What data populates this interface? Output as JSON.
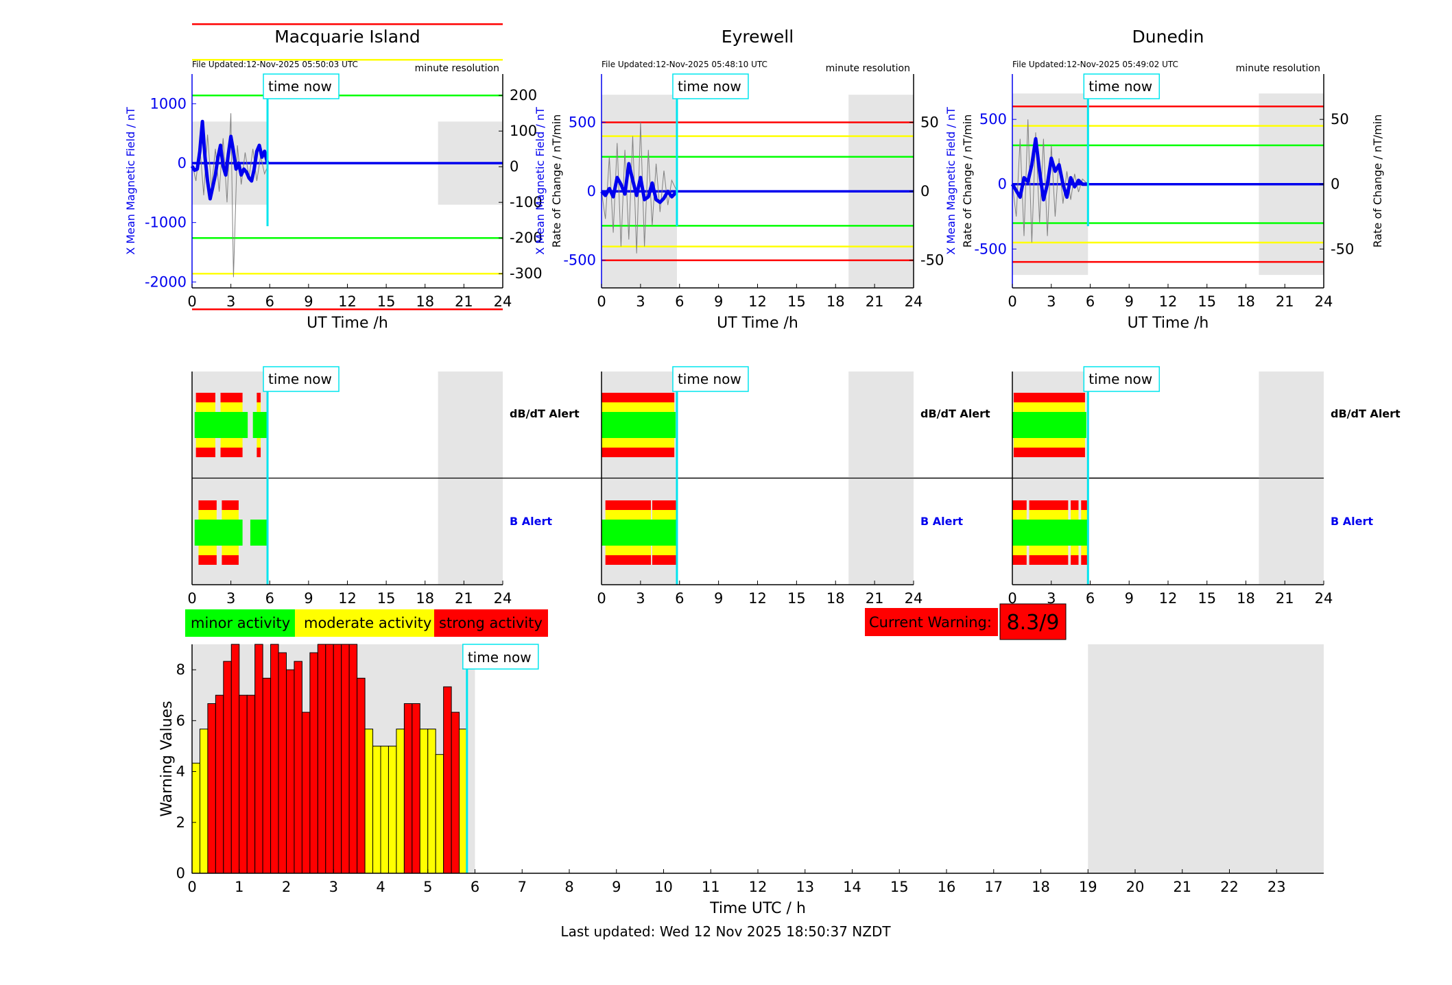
{
  "chart_data": [
    {
      "type": "line",
      "panel": "station",
      "title": "Macquarie Island",
      "file_updated": "File Updated:12-Nov-2025 05:50:03 UTC",
      "resolution_label": "minute resolution",
      "time_now_label": "time now",
      "time_now": 5.83,
      "xlabel": "UT Time /h",
      "ylabel_left": "X Mean Magnetic Field / nT",
      "ylabel_right": "Rate of Change / nT/min",
      "xlim": [
        0,
        24
      ],
      "ylim_left": [
        -2100,
        1500
      ],
      "ylim_right": [
        -340,
        260
      ],
      "x_ticks": [
        0,
        3,
        6,
        9,
        12,
        15,
        18,
        21,
        24
      ],
      "y_ticks_left": [
        1000,
        0,
        -1000,
        -2000
      ],
      "y_ticks_right": [
        200,
        100,
        0,
        -100,
        -200,
        -300
      ],
      "night_shading": [
        [
          0,
          5.83,
          -700,
          700
        ],
        [
          19,
          24,
          -700,
          700
        ]
      ],
      "threshold_lines": {
        "red": [
          400,
          -400
        ],
        "yellow": [
          300,
          -300
        ],
        "green": [
          200,
          -200
        ]
      },
      "series": [
        {
          "name": "",
          "color": "#0000ee",
          "x": [
            0.0,
            0.2,
            0.4,
            0.6,
            0.8,
            1.0,
            1.2,
            1.4,
            1.6,
            1.8,
            2.0,
            2.2,
            2.4,
            2.6,
            2.8,
            3.0,
            3.2,
            3.4,
            3.6,
            3.8,
            4.0,
            4.2,
            4.4,
            4.6,
            4.8,
            5.0,
            5.2,
            5.4,
            5.6,
            5.83
          ],
          "y": [
            -50,
            -120,
            -100,
            200,
            700,
            100,
            -300,
            -600,
            -400,
            -200,
            100,
            300,
            -50,
            -200,
            150,
            450,
            200,
            -100,
            0,
            -200,
            -100,
            -150,
            -250,
            -300,
            -100,
            200,
            300,
            100,
            200,
            0
          ]
        },
        {
          "name": "",
          "color": "#808080",
          "x": [
            0.0,
            0.3,
            0.6,
            0.9,
            1.2,
            1.5,
            1.8,
            2.1,
            2.4,
            2.7,
            3.0,
            3.2,
            3.5,
            3.8,
            4.1,
            4.4,
            4.7,
            5.0,
            5.3,
            5.6,
            5.83
          ],
          "y": [
            10,
            -40,
            60,
            -80,
            90,
            -60,
            50,
            -70,
            80,
            -100,
            150,
            -310,
            60,
            -50,
            40,
            -30,
            50,
            -40,
            30,
            -20,
            0
          ]
        }
      ]
    },
    {
      "type": "line",
      "panel": "station",
      "title": "Eyrewell",
      "file_updated": "File Updated:12-Nov-2025 05:48:10 UTC",
      "resolution_label": "minute resolution",
      "time_now_label": "time now",
      "time_now": 5.8,
      "xlabel": "UT Time /h",
      "ylabel_left": "X Mean Magnetic Field / nT",
      "ylabel_right": "Rate of Change / nT/min",
      "xlim": [
        0,
        24
      ],
      "ylim_left": [
        -700,
        850
      ],
      "ylim_right": [
        -70,
        85
      ],
      "x_ticks": [
        0,
        3,
        6,
        9,
        12,
        15,
        18,
        21,
        24
      ],
      "y_ticks_left": [
        500,
        0,
        -500
      ],
      "y_ticks_right": [
        50,
        0,
        -50
      ],
      "night_shading": [
        [
          0,
          5.8,
          -700,
          700
        ],
        [
          19,
          24,
          -700,
          700
        ]
      ],
      "threshold_lines": {
        "red": [
          50,
          -50
        ],
        "yellow": [
          40,
          -40
        ],
        "green": [
          25,
          -25
        ]
      },
      "series": [
        {
          "name": "",
          "color": "#0000ee",
          "x": [
            0.0,
            0.3,
            0.6,
            0.9,
            1.2,
            1.5,
            1.8,
            2.1,
            2.4,
            2.7,
            3.0,
            3.3,
            3.6,
            3.9,
            4.2,
            4.5,
            4.8,
            5.1,
            5.4,
            5.8
          ],
          "y": [
            0,
            -30,
            20,
            -40,
            100,
            50,
            -20,
            200,
            80,
            -30,
            100,
            -60,
            -40,
            60,
            -60,
            -80,
            -50,
            0,
            -40,
            0
          ]
        },
        {
          "name": "",
          "color": "#808080",
          "x": [
            0.0,
            0.3,
            0.6,
            0.9,
            1.2,
            1.5,
            1.8,
            2.1,
            2.4,
            2.7,
            3.0,
            3.3,
            3.6,
            3.9,
            4.2,
            4.5,
            4.8,
            5.1,
            5.4,
            5.8
          ],
          "y": [
            0,
            -20,
            25,
            -30,
            35,
            -40,
            30,
            -35,
            40,
            -45,
            50,
            -40,
            30,
            -25,
            20,
            -15,
            15,
            -10,
            8,
            0
          ]
        }
      ]
    },
    {
      "type": "line",
      "panel": "station",
      "title": "Dunedin",
      "file_updated": "File Updated:12-Nov-2025 05:49:02 UTC",
      "resolution_label": "minute resolution",
      "time_now_label": "time now",
      "time_now": 5.83,
      "xlabel": "UT Time /h",
      "ylabel_left": "X Mean Magnetic Field / nT",
      "ylabel_right": "Rate of Change / nT/min",
      "xlim": [
        0,
        24
      ],
      "ylim_left": [
        -800,
        850
      ],
      "ylim_right": [
        -80,
        85
      ],
      "x_ticks": [
        0,
        3,
        6,
        9,
        12,
        15,
        18,
        21,
        24
      ],
      "y_ticks_left": [
        500,
        0,
        -500
      ],
      "y_ticks_right": [
        50,
        0,
        -50
      ],
      "night_shading": [
        [
          0,
          5.83,
          -700,
          700
        ],
        [
          19,
          24,
          -700,
          700
        ]
      ],
      "threshold_lines": {
        "red": [
          60,
          -60
        ],
        "yellow": [
          45,
          -45
        ],
        "green": [
          30,
          -30
        ]
      },
      "series": [
        {
          "name": "",
          "color": "#0000ee",
          "x": [
            0.0,
            0.3,
            0.6,
            0.9,
            1.2,
            1.5,
            1.8,
            2.1,
            2.4,
            2.7,
            3.0,
            3.3,
            3.6,
            3.9,
            4.2,
            4.5,
            4.8,
            5.1,
            5.4,
            5.83
          ],
          "y": [
            0,
            -50,
            -100,
            50,
            20,
            150,
            350,
            100,
            -120,
            0,
            200,
            100,
            150,
            0,
            -100,
            50,
            -20,
            30,
            0,
            0
          ]
        },
        {
          "name": "",
          "color": "#808080",
          "x": [
            0.0,
            0.3,
            0.6,
            0.9,
            1.2,
            1.5,
            1.8,
            2.1,
            2.4,
            2.7,
            3.0,
            3.3,
            3.6,
            3.9,
            4.2,
            4.5,
            4.8,
            5.1,
            5.4,
            5.83
          ],
          "y": [
            0,
            -25,
            35,
            -40,
            50,
            -45,
            40,
            -30,
            35,
            -40,
            30,
            -25,
            20,
            -15,
            10,
            -12,
            8,
            -6,
            4,
            0
          ]
        }
      ]
    },
    {
      "type": "bar",
      "panel": "alerts",
      "title": "",
      "time_now_label": "time now",
      "time_now": 5.83,
      "row_labels": [
        "dB/dT Alert",
        "B Alert"
      ],
      "row_label_colors": [
        "#000000",
        "#0000ee"
      ],
      "xlim": [
        0,
        24
      ],
      "x_ticks": [
        0,
        3,
        6,
        9,
        12,
        15,
        18,
        21,
        24
      ],
      "night_shading": [
        [
          0,
          5.83
        ],
        [
          19,
          24
        ]
      ],
      "rows": [
        {
          "level": 3,
          "segments": [
            [
              0.3,
              1.8
            ],
            [
              2.2,
              3.9
            ],
            [
              5.0,
              5.3
            ]
          ]
        },
        {
          "level": 1,
          "segments": [
            [
              0.2,
              4.3
            ],
            [
              4.7,
              5.8
            ]
          ]
        }
      ],
      "rows_b": [
        {
          "level": 3,
          "segments": [
            [
              0.5,
              1.9
            ],
            [
              2.3,
              3.6
            ]
          ]
        },
        {
          "level": 1,
          "segments": [
            [
              0.2,
              3.9
            ],
            [
              4.5,
              5.8
            ]
          ]
        }
      ]
    },
    {
      "type": "bar",
      "panel": "alerts",
      "title": "",
      "time_now_label": "time now",
      "time_now": 5.8,
      "row_labels": [
        "dB/dT Alert",
        "B Alert"
      ],
      "row_label_colors": [
        "#000000",
        "#0000ee"
      ],
      "xlim": [
        0,
        24
      ],
      "x_ticks": [
        0,
        3,
        6,
        9,
        12,
        15,
        18,
        21,
        24
      ],
      "night_shading": [
        [
          0,
          5.8
        ],
        [
          19,
          24
        ]
      ],
      "rows": [
        {
          "level": 3,
          "segments": [
            [
              0.0,
              5.6
            ]
          ]
        },
        {
          "level": 1,
          "segments": [
            [
              0.0,
              5.7
            ]
          ]
        }
      ],
      "rows_b": [
        {
          "level": 3,
          "segments": [
            [
              0.3,
              3.8
            ],
            [
              3.9,
              5.8
            ]
          ]
        },
        {
          "level": 1,
          "segments": [
            [
              0.0,
              5.8
            ]
          ]
        }
      ]
    },
    {
      "type": "bar",
      "panel": "alerts",
      "title": "",
      "time_now_label": "time now",
      "time_now": 5.83,
      "row_labels": [
        "dB/dT Alert",
        "B Alert"
      ],
      "row_label_colors": [
        "#000000",
        "#0000ee"
      ],
      "xlim": [
        0,
        24
      ],
      "x_ticks": [
        0,
        3,
        6,
        9,
        12,
        15,
        18,
        21,
        24
      ],
      "night_shading": [
        [
          0,
          5.83
        ],
        [
          19,
          24
        ]
      ],
      "rows": [
        {
          "level": 3,
          "segments": [
            [
              0.1,
              5.6
            ]
          ]
        },
        {
          "level": 1,
          "segments": [
            [
              0.0,
              5.7
            ]
          ]
        }
      ],
      "rows_b": [
        {
          "level": 3,
          "segments": [
            [
              0.0,
              1.1
            ],
            [
              1.3,
              4.3
            ],
            [
              4.5,
              5.1
            ],
            [
              5.3,
              5.9
            ]
          ]
        },
        {
          "level": 1,
          "segments": [
            [
              0.0,
              5.9
            ]
          ]
        }
      ]
    },
    {
      "type": "bar",
      "panel": "warnings",
      "title": "",
      "xlabel": "Time UTC / h",
      "ylabel": "Warning Values",
      "time_now_label": "time now",
      "time_now": 5.83,
      "xlim": [
        0,
        24
      ],
      "ylim": [
        0,
        9
      ],
      "x_ticks": [
        0,
        1,
        2,
        3,
        4,
        5,
        6,
        7,
        8,
        9,
        10,
        11,
        12,
        13,
        14,
        15,
        16,
        17,
        18,
        19,
        20,
        21,
        22,
        23
      ],
      "y_ticks": [
        0,
        2,
        4,
        6,
        8
      ],
      "night_shading": [
        [
          0,
          6.0
        ],
        [
          19,
          24
        ]
      ],
      "bar_width": 0.1667,
      "x": [
        0.0,
        0.1667,
        0.3333,
        0.5,
        0.6667,
        0.8333,
        1.0,
        1.1667,
        1.3333,
        1.5,
        1.6667,
        1.8333,
        2.0,
        2.1667,
        2.3333,
        2.5,
        2.6667,
        2.8333,
        3.0,
        3.1667,
        3.3333,
        3.5,
        3.6667,
        3.8333,
        4.0,
        4.1667,
        4.3333,
        4.5,
        4.6667,
        4.8333,
        5.0,
        5.1667,
        5.3333,
        5.5,
        5.6667
      ],
      "values": [
        4.33,
        5.67,
        6.67,
        7.0,
        8.33,
        9.0,
        7.0,
        7.0,
        9.0,
        7.67,
        9.0,
        8.67,
        8.0,
        8.33,
        6.33,
        8.67,
        9.0,
        9.0,
        9.0,
        9.0,
        9.0,
        7.67,
        5.67,
        5.0,
        5.0,
        5.0,
        5.67,
        6.67,
        6.67,
        5.67,
        5.67,
        4.67,
        7.33,
        6.33,
        5.67
      ],
      "levels": [
        2,
        2,
        3,
        3,
        3,
        3,
        3,
        3,
        3,
        3,
        3,
        3,
        3,
        3,
        3,
        3,
        3,
        3,
        3,
        3,
        3,
        3,
        2,
        2,
        2,
        2,
        2,
        3,
        3,
        2,
        2,
        2,
        3,
        3,
        2
      ]
    }
  ],
  "legend": {
    "minor": "minor activity",
    "moderate": "moderate activity",
    "strong": "strong activity"
  },
  "colors": {
    "minor": "#00ff00",
    "moderate": "#ffff00",
    "strong": "#ff0000",
    "field": "#0000ee",
    "rate": "#808080",
    "time_now": "#00e5ee",
    "night": "#e5e5e5"
  },
  "current_warning": {
    "label": "Current Warning:",
    "value": "8.3/9"
  },
  "footer": {
    "last_updated": "Last updated: Wed 12 Nov 2025 18:50:37 NZDT"
  }
}
